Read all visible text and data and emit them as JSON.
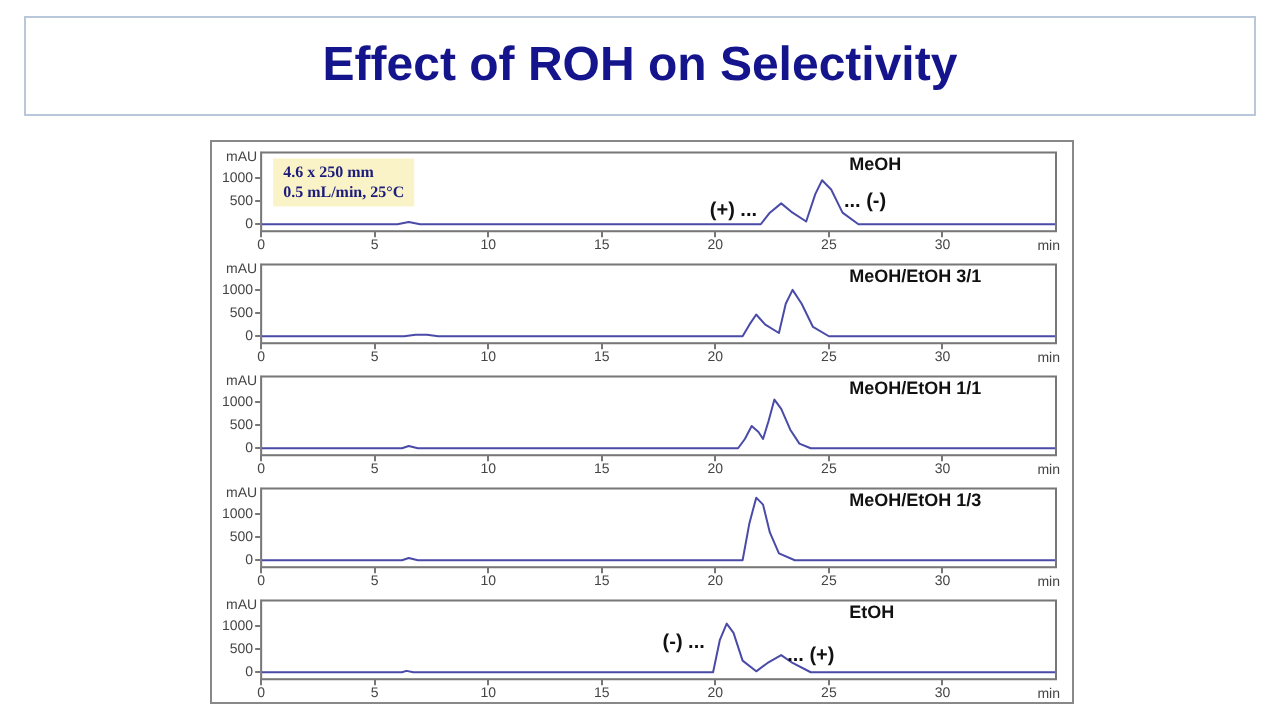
{
  "chart_data": [
    {
      "type": "line",
      "title": "Effect of ROH on Selectivity",
      "subtitle": "MeOH",
      "xlabel": "min",
      "ylabel": "mAU",
      "xlim": [
        0,
        35
      ],
      "xticks": [
        0,
        5,
        10,
        15,
        20,
        25,
        30
      ],
      "ylim": [
        -150,
        1550
      ],
      "yticks": [
        0,
        500,
        1000
      ],
      "grid": false,
      "legend": false,
      "marker": "none",
      "annotations": [
        "4.6 x 250 mm\n0.5 mL/min, 25°C",
        {
          "text": "(+) ...",
          "x": 22.1,
          "y": 300
        },
        {
          "text": "... (-)",
          "x": 25.4,
          "y": 500
        }
      ],
      "series": [
        {
          "color": "#4a4aa8",
          "x": [
            0,
            6,
            6.5,
            7,
            7.5,
            22,
            22.4,
            22.9,
            23.4,
            24,
            24.4,
            24.7,
            25.1,
            25.6,
            26.3,
            35
          ],
          "values": [
            0,
            0,
            50,
            0,
            0,
            0,
            250,
            450,
            250,
            60,
            650,
            950,
            750,
            250,
            0,
            0
          ]
        }
      ]
    },
    {
      "type": "line",
      "subtitle": "MeOH/EtOH 3/1",
      "xlabel": "min",
      "ylabel": "mAU",
      "xlim": [
        0,
        35
      ],
      "xticks": [
        0,
        5,
        10,
        15,
        20,
        25,
        30
      ],
      "ylim": [
        -150,
        1550
      ],
      "yticks": [
        0,
        500,
        1000
      ],
      "grid": false,
      "legend": false,
      "marker": "none",
      "series": [
        {
          "color": "#4a4aa8",
          "x": [
            0,
            6.3,
            6.8,
            7.3,
            7.8,
            21.2,
            21.5,
            21.8,
            22.2,
            22.8,
            23.1,
            23.4,
            23.8,
            24.3,
            25,
            35
          ],
          "values": [
            0,
            0,
            30,
            30,
            0,
            0,
            250,
            470,
            250,
            70,
            700,
            1000,
            700,
            200,
            0,
            0
          ]
        }
      ]
    },
    {
      "type": "line",
      "subtitle": "MeOH/EtOH 1/1",
      "xlabel": "min",
      "ylabel": "mAU",
      "xlim": [
        0,
        35
      ],
      "xticks": [
        0,
        5,
        10,
        15,
        20,
        25,
        30
      ],
      "ylim": [
        -150,
        1550
      ],
      "yticks": [
        0,
        500,
        1000
      ],
      "grid": false,
      "legend": false,
      "marker": "none",
      "series": [
        {
          "color": "#4a4aa8",
          "x": [
            0,
            6.2,
            6.5,
            6.9,
            21,
            21.3,
            21.6,
            21.9,
            22.1,
            22.35,
            22.6,
            22.9,
            23.3,
            23.7,
            24.2,
            35
          ],
          "values": [
            0,
            0,
            50,
            0,
            0,
            200,
            480,
            350,
            200,
            600,
            1050,
            850,
            400,
            100,
            0,
            0
          ]
        }
      ]
    },
    {
      "type": "line",
      "subtitle": "MeOH/EtOH 1/3",
      "xlabel": "min",
      "ylabel": "mAU",
      "xlim": [
        0,
        35
      ],
      "xticks": [
        0,
        5,
        10,
        15,
        20,
        25,
        30
      ],
      "ylim": [
        -150,
        1550
      ],
      "yticks": [
        0,
        500,
        1000
      ],
      "grid": false,
      "legend": false,
      "marker": "none",
      "series": [
        {
          "color": "#4a4aa8",
          "x": [
            0,
            6.2,
            6.5,
            6.9,
            21.2,
            21.5,
            21.8,
            22.1,
            22.4,
            22.8,
            23.5,
            35
          ],
          "values": [
            0,
            0,
            50,
            0,
            0,
            800,
            1350,
            1200,
            600,
            150,
            0,
            0
          ]
        }
      ]
    },
    {
      "type": "line",
      "subtitle": "EtOH",
      "xlabel": "min",
      "ylabel": "mAU",
      "xlim": [
        0,
        35
      ],
      "xticks": [
        0,
        5,
        10,
        15,
        20,
        25,
        30
      ],
      "ylim": [
        -150,
        1550
      ],
      "yticks": [
        0,
        500,
        1000
      ],
      "grid": false,
      "legend": false,
      "marker": "none",
      "annotations": [
        {
          "text": "(-) ...",
          "x": 19.8,
          "y": 650
        },
        {
          "text": "... (+)",
          "x": 22.9,
          "y": 370
        }
      ],
      "series": [
        {
          "color": "#4a4aa8",
          "x": [
            0,
            6.2,
            6.4,
            6.7,
            19.9,
            20.2,
            20.5,
            20.8,
            21.2,
            21.8,
            22.3,
            22.9,
            23.4,
            24.2,
            35
          ],
          "values": [
            0,
            0,
            30,
            0,
            0,
            700,
            1050,
            850,
            250,
            20,
            200,
            370,
            200,
            0,
            0
          ]
        }
      ]
    }
  ]
}
